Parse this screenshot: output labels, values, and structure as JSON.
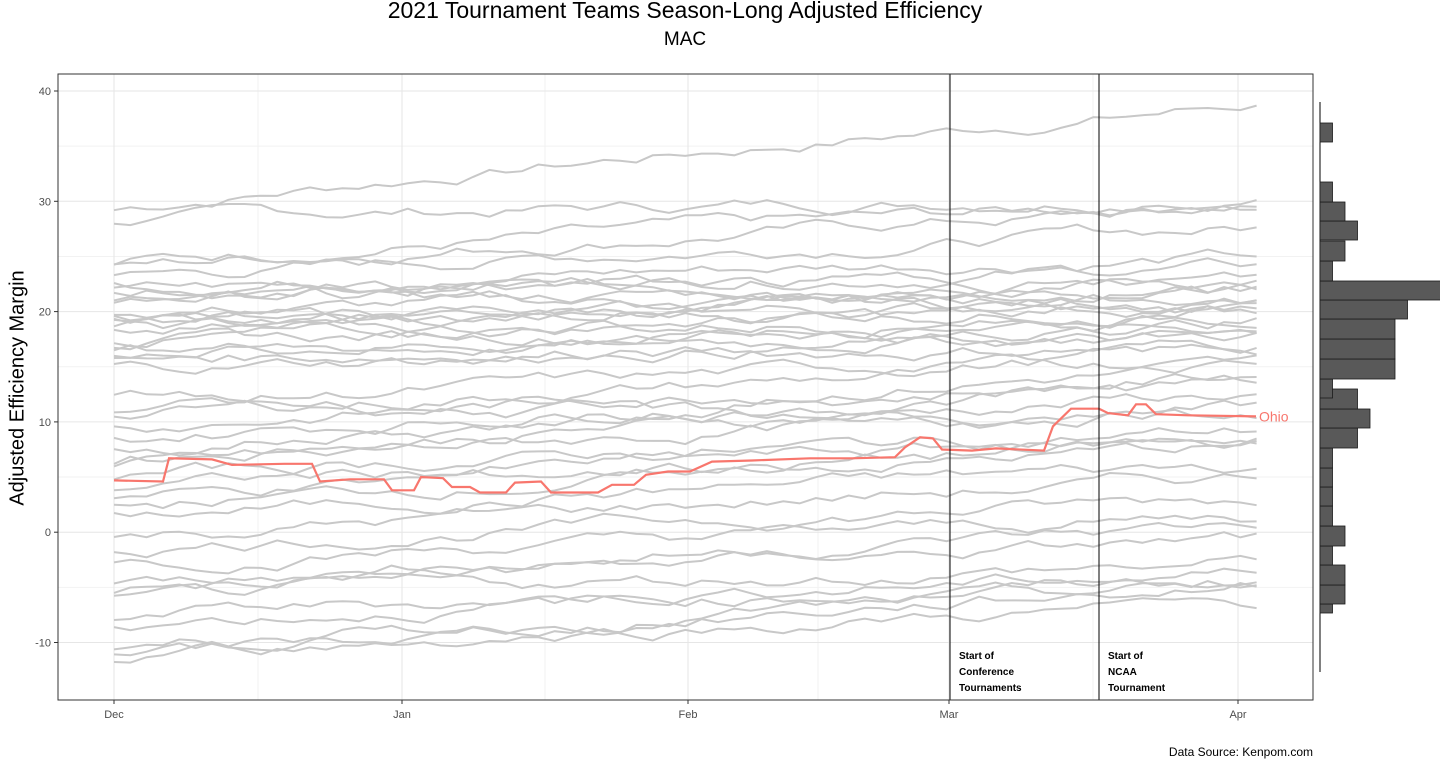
{
  "chart_data": {
    "type": "line",
    "title": "2021 Tournament Teams Season-Long Adjusted Efficiency",
    "subtitle": "MAC",
    "xlabel": "",
    "ylabel": "Adjusted Efficiency Margin",
    "caption": "Data Source: Kenpom.com",
    "x_ticks": [
      "Dec",
      "Jan",
      "Feb",
      "Mar",
      "Apr"
    ],
    "x_range": [
      "2020-11-25",
      "2021-04-08"
    ],
    "y_ticks": [
      40,
      30,
      20,
      10,
      0,
      -10
    ],
    "ylim": [
      -15.3,
      41.5
    ],
    "grid": true,
    "colors": {
      "highlight": "#f8766d",
      "background_series": "#c8c8c8",
      "histogram": "#595959"
    },
    "highlight": {
      "name": "Ohio",
      "points": [
        [
          "2020-12-01",
          4.7
        ],
        [
          "2020-12-08",
          4.6
        ],
        [
          "2020-12-10",
          6.7
        ],
        [
          "2020-12-14",
          6.6
        ],
        [
          "2020-12-17",
          6.1
        ],
        [
          "2020-12-24",
          6.2
        ],
        [
          "2020-12-28",
          6.2
        ],
        [
          "2020-12-30",
          4.6
        ],
        [
          "2021-01-03",
          4.8
        ],
        [
          "2021-01-07",
          4.8
        ],
        [
          "2021-01-10",
          3.8
        ],
        [
          "2021-01-13",
          3.8
        ],
        [
          "2021-01-15",
          5.0
        ],
        [
          "2021-01-18",
          4.9
        ],
        [
          "2021-01-20",
          4.1
        ],
        [
          "2021-01-23",
          4.1
        ],
        [
          "2021-01-25",
          3.6
        ],
        [
          "2021-01-30",
          3.6
        ],
        [
          "2021-02-01",
          4.5
        ],
        [
          "2021-02-05",
          4.6
        ],
        [
          "2021-02-07",
          3.6
        ],
        [
          "2021-02-12",
          3.6
        ],
        [
          "2021-02-14",
          4.2
        ],
        [
          "2021-02-18",
          4.3
        ],
        [
          "2021-02-20",
          5.1
        ],
        [
          "2021-02-23",
          5.4
        ],
        [
          "2021-02-28",
          5.5
        ],
        [
          "2021-03-03",
          6.3
        ],
        [
          "2021-03-07",
          6.4
        ],
        [
          "2021-03-14",
          6.5
        ],
        [
          "2021-03-18",
          6.7
        ],
        [
          "2021-03-21",
          6.7
        ],
        [
          "2021-03-23",
          6.9
        ],
        [
          "2021-03-25",
          7.5
        ],
        [
          "2021-03-27",
          8.2
        ],
        [
          "2021-03-29",
          8.6
        ],
        [
          "2021-03-31",
          8.5
        ],
        [
          "2021-04-01",
          7.5
        ],
        [
          "2021-03-30",
          7.5
        ]
      ]
    },
    "histogram": {
      "bins": [
        -7,
        -5,
        -4,
        -2,
        0,
        2,
        3,
        5,
        6,
        8,
        9,
        10,
        11,
        13,
        15,
        17,
        18,
        19,
        20,
        21,
        22,
        23,
        25,
        29,
        30,
        35
      ],
      "counts": [
        1,
        2,
        2,
        1,
        2,
        1,
        1,
        1,
        1,
        3,
        4,
        3,
        1,
        6,
        6,
        6,
        7,
        11,
        1,
        2,
        0,
        3,
        2,
        1,
        0,
        1
      ]
    },
    "annotations": [
      {
        "date": "2021-03-01",
        "label": [
          "Start of",
          "Conference",
          "Tournaments"
        ]
      },
      {
        "date": "2021-03-17",
        "label": [
          "Start of",
          "NCAA",
          "Tournament"
        ]
      }
    ]
  }
}
